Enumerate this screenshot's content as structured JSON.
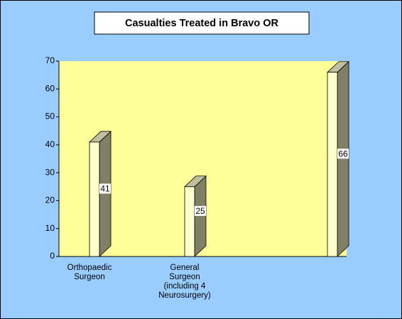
{
  "chart_data": {
    "type": "bar3d",
    "title": "Casualties Treated in Bravo OR",
    "categories": [
      "Orthopaedic Surgeon",
      "General Surgeon (including 4 Neurosurgery)",
      null
    ],
    "values": [
      41,
      25,
      66
    ],
    "front_color": "#ffffcc",
    "side_color": "#808066",
    "top_color": "#c0c0a0",
    "plot_color": "#ffff99",
    "background": "#99ccff",
    "ylim": [
      0,
      70
    ],
    "yticks": [
      0,
      10,
      20,
      30,
      40,
      50,
      60,
      70
    ]
  }
}
